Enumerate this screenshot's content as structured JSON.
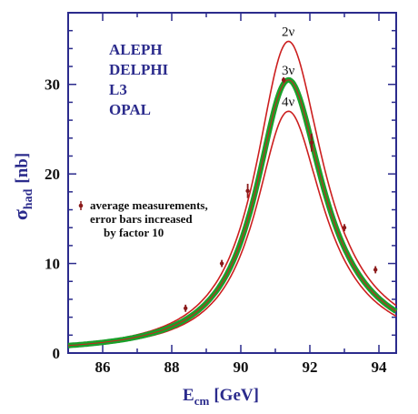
{
  "chart_data": {
    "type": "line",
    "xlabel": "E",
    "xlabel_sub": "cm",
    "xlabel_unit": "[GeV]",
    "ylabel": "σ",
    "ylabel_sub": "had",
    "ylabel_unit": "[nb]",
    "xlim": [
      85,
      94.5
    ],
    "ylim": [
      0,
      38
    ],
    "x_ticks": [
      86,
      88,
      90,
      92,
      94
    ],
    "y_ticks": [
      0,
      10,
      20,
      30
    ],
    "grid": false,
    "experiments": [
      "ALEPH",
      "DELPHI",
      "L3",
      "OPAL"
    ],
    "legend_lines": [
      "average measurements,",
      "error bars increased",
      "by factor 10"
    ],
    "legend_position": "left-middle",
    "mz": 91.19,
    "width": 2.495,
    "tail": 0.6,
    "series": [
      {
        "name": "2ν",
        "peak": 34.8,
        "color": "#cc1f1f"
      },
      {
        "name": "3ν",
        "peak": 30.5,
        "color": "#1aa02a",
        "band": true
      },
      {
        "name": "4ν",
        "peak": 27.0,
        "color": "#cc1f1f"
      }
    ],
    "measurements": [
      {
        "x": 88.4,
        "y": 5.0,
        "err": 0.4
      },
      {
        "x": 89.45,
        "y": 10.0,
        "err": 0.4
      },
      {
        "x": 90.2,
        "y": 18.1,
        "err": 0.8
      },
      {
        "x": 91.24,
        "y": 30.5,
        "err": 0.3
      },
      {
        "x": 92.05,
        "y": 23.5,
        "err": 1.0
      },
      {
        "x": 93.0,
        "y": 14.0,
        "err": 0.4
      },
      {
        "x": 93.9,
        "y": 9.3,
        "err": 0.4
      }
    ],
    "colors": {
      "axis": "#2b2b8c",
      "marker": "#8b1a1a",
      "text": "#2b2b8c"
    }
  }
}
